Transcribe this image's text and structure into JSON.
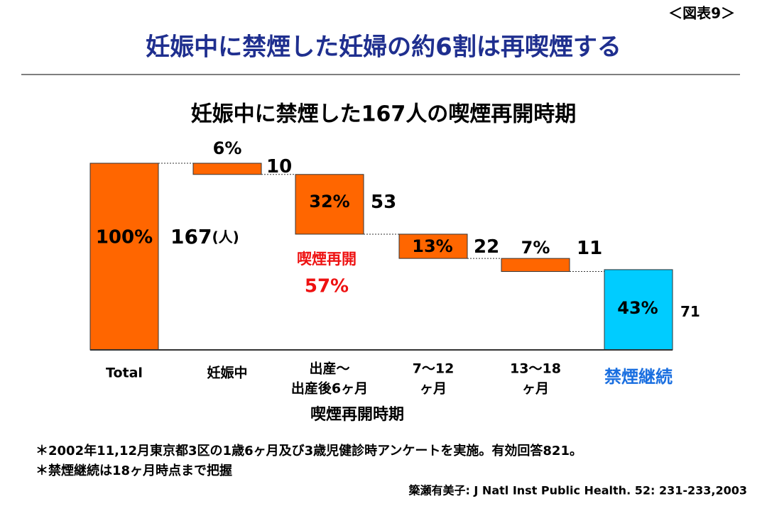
{
  "chart_data": {
    "type": "waterfall",
    "figure_label": "＜図表9＞",
    "title": "妊娠中に禁煙した妊婦の約6割は再喫煙する",
    "subtitle": "妊娠中に禁煙した167人の喫煙再開時期",
    "categories": [
      [
        "Total"
      ],
      [
        "妊娠中"
      ],
      [
        "出産〜",
        "出産後6ヶ月"
      ],
      [
        "7〜12",
        "ヶ月"
      ],
      [
        "13〜18",
        "ヶ月"
      ],
      [
        "禁煙継続"
      ]
    ],
    "values": [
      100,
      6,
      32,
      13,
      7,
      43
    ],
    "value_labels": [
      "100%",
      "6%",
      "32%",
      "13%",
      "7%",
      "43%"
    ],
    "counts": [
      "167",
      "10",
      "53",
      "22",
      "11",
      "71"
    ],
    "count_unit": "(人)",
    "colors": [
      "#ff6600",
      "#ff6600",
      "#ff6600",
      "#ff6600",
      "#ff6600",
      "#00ccff"
    ],
    "ylim": [
      0,
      100
    ],
    "annotation": [
      "喫煙再開",
      "57%"
    ],
    "x_label": "喫煙再開時期",
    "notes": [
      "＊2002年11,12月東京都3区の1歳6ヶ月及び3歳児健診時アンケートを実施。有効回答821。",
      "＊禁煙継続は18ヶ月時点まで把握"
    ],
    "source": "簗瀬有美子: J Natl Inst Public Health. 52: 231-233,2003"
  }
}
